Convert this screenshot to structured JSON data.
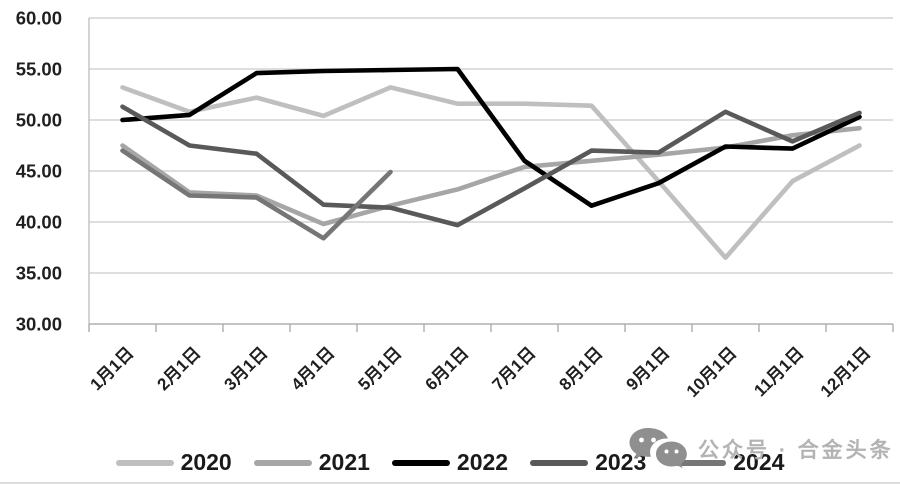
{
  "chart_data": {
    "type": "line",
    "title": "",
    "xlabel": "",
    "ylabel": "",
    "categories": [
      "1月1日",
      "2月1日",
      "3月1日",
      "4月1日",
      "5月1日",
      "6月1日",
      "7月1日",
      "8月1日",
      "9月1日",
      "10月1日",
      "11月1日",
      "12月1日"
    ],
    "series": [
      {
        "name": "2020",
        "color": "#bfbfbf",
        "values": [
          53.2,
          50.8,
          52.2,
          50.4,
          53.2,
          51.6,
          51.6,
          51.4,
          44.0,
          36.5,
          44.0,
          47.5
        ]
      },
      {
        "name": "2021",
        "color": "#a6a6a6",
        "values": [
          47.5,
          42.9,
          42.6,
          39.8,
          41.6,
          43.2,
          45.4,
          46.0,
          46.6,
          47.3,
          48.5,
          49.2
        ]
      },
      {
        "name": "2022",
        "color": "#000000",
        "values": [
          50.0,
          50.5,
          54.6,
          54.8,
          54.9,
          55.0,
          46.0,
          41.6,
          43.8,
          47.4,
          47.2,
          50.3
        ]
      },
      {
        "name": "2023",
        "color": "#595959",
        "values": [
          51.3,
          47.5,
          46.7,
          41.7,
          41.4,
          39.7,
          43.3,
          47.0,
          46.8,
          50.8,
          47.9,
          50.7
        ]
      },
      {
        "name": "2024",
        "color": "#767676",
        "values": [
          47.0,
          42.6,
          42.4,
          38.4,
          44.9
        ]
      }
    ],
    "ylim": [
      30,
      60
    ],
    "ytick_step": 5,
    "ytick_labels": [
      "60.00",
      "55.00",
      "50.00",
      "45.00",
      "40.00",
      "35.00",
      "30.00"
    ],
    "grid": true,
    "legend_position": "bottom"
  },
  "watermark": {
    "icon": "wechat-icon",
    "text": "公众号 · 合金头条"
  }
}
